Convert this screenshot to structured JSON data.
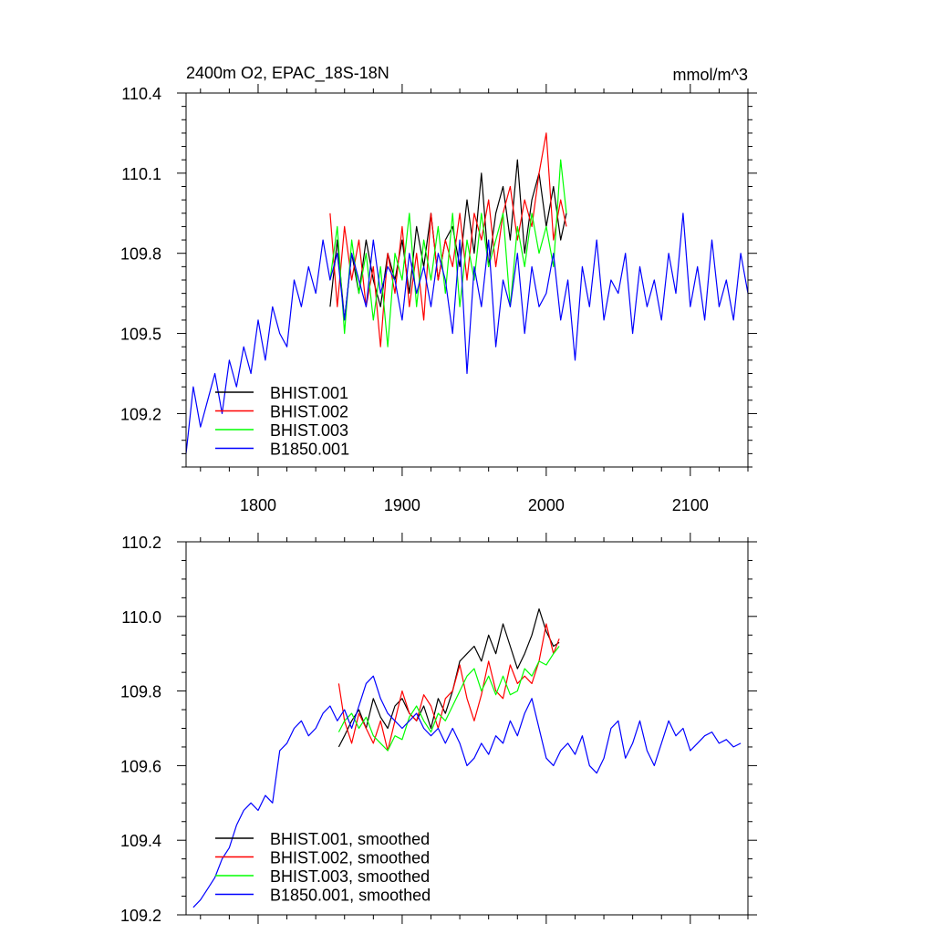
{
  "chart_data": [
    {
      "type": "line",
      "panel": "top",
      "title_left": "2400m O2, EPAC_18S-18N",
      "title_right": "mmol/m^3",
      "xlabel": "",
      "ylabel": "",
      "xlim": [
        1750,
        2140
      ],
      "ylim": [
        109.0,
        110.4
      ],
      "x_ticks": [
        1800,
        1900,
        2000,
        2100
      ],
      "x_tick_labels": [
        "1800",
        "1900",
        "2000",
        "2100"
      ],
      "y_ticks": [
        109.2,
        109.5,
        109.8,
        110.1,
        110.4
      ],
      "y_tick_labels": [
        "109.2",
        "109.5",
        "109.8",
        "110.1",
        "110.4"
      ],
      "legend_position": "bottom-left",
      "series": [
        {
          "name": "BHIST.001",
          "color": "#000000",
          "x": [
            1850,
            1855,
            1860,
            1865,
            1870,
            1875,
            1880,
            1885,
            1890,
            1895,
            1900,
            1905,
            1910,
            1915,
            1920,
            1925,
            1930,
            1935,
            1940,
            1945,
            1950,
            1955,
            1960,
            1965,
            1970,
            1975,
            1980,
            1985,
            1990,
            1995,
            2000,
            2005,
            2010,
            2014
          ],
          "values": [
            109.6,
            109.85,
            109.55,
            109.8,
            109.65,
            109.85,
            109.7,
            109.6,
            109.8,
            109.7,
            109.85,
            109.65,
            109.9,
            109.75,
            109.95,
            109.7,
            109.85,
            109.9,
            109.75,
            110.0,
            109.8,
            110.1,
            109.75,
            109.95,
            110.05,
            109.85,
            110.15,
            109.8,
            110.0,
            110.1,
            109.9,
            110.05,
            109.85,
            109.95
          ]
        },
        {
          "name": "BHIST.002",
          "color": "#ff0000",
          "x": [
            1850,
            1855,
            1860,
            1865,
            1870,
            1875,
            1880,
            1885,
            1890,
            1895,
            1900,
            1905,
            1910,
            1915,
            1920,
            1925,
            1930,
            1935,
            1940,
            1945,
            1950,
            1955,
            1960,
            1965,
            1970,
            1975,
            1980,
            1985,
            1990,
            1995,
            2000,
            2005,
            2010,
            2014
          ],
          "values": [
            109.95,
            109.6,
            109.9,
            109.7,
            109.85,
            109.6,
            109.75,
            109.45,
            109.8,
            109.65,
            109.9,
            109.6,
            109.8,
            109.55,
            109.95,
            109.7,
            109.85,
            109.75,
            109.95,
            109.7,
            109.95,
            109.85,
            110.0,
            109.75,
            109.95,
            110.05,
            109.85,
            110.0,
            109.9,
            110.1,
            110.25,
            109.85,
            110.0,
            109.9
          ]
        },
        {
          "name": "BHIST.003",
          "color": "#00ff00",
          "x": [
            1850,
            1855,
            1860,
            1865,
            1870,
            1875,
            1880,
            1885,
            1890,
            1895,
            1900,
            1905,
            1910,
            1915,
            1920,
            1925,
            1930,
            1935,
            1940,
            1945,
            1950,
            1955,
            1960,
            1965,
            1970,
            1975,
            1980,
            1985,
            1990,
            1995,
            2000,
            2005,
            2010,
            2014
          ],
          "values": [
            109.7,
            109.9,
            109.5,
            109.85,
            109.65,
            109.8,
            109.55,
            109.75,
            109.45,
            109.8,
            109.7,
            109.95,
            109.6,
            109.85,
            109.7,
            109.9,
            109.65,
            109.95,
            109.6,
            109.85,
            109.7,
            109.95,
            109.75,
            109.85,
            109.95,
            109.6,
            109.9,
            109.75,
            109.95,
            109.8,
            109.9,
            109.75,
            110.15,
            109.95
          ]
        },
        {
          "name": "B1850.001",
          "color": "#0000ff",
          "x": [
            1750,
            1755,
            1760,
            1765,
            1770,
            1775,
            1780,
            1785,
            1790,
            1795,
            1800,
            1805,
            1810,
            1815,
            1820,
            1825,
            1830,
            1835,
            1840,
            1845,
            1850,
            1855,
            1860,
            1865,
            1870,
            1875,
            1880,
            1885,
            1890,
            1895,
            1900,
            1905,
            1910,
            1915,
            1920,
            1925,
            1930,
            1935,
            1940,
            1945,
            1950,
            1955,
            1960,
            1965,
            1970,
            1975,
            1980,
            1985,
            1990,
            1995,
            2000,
            2005,
            2010,
            2015,
            2020,
            2025,
            2030,
            2035,
            2040,
            2045,
            2050,
            2055,
            2060,
            2065,
            2070,
            2075,
            2080,
            2085,
            2090,
            2095,
            2100,
            2105,
            2110,
            2115,
            2120,
            2125,
            2130,
            2135,
            2140
          ],
          "values": [
            109.05,
            109.3,
            109.15,
            109.25,
            109.35,
            109.2,
            109.4,
            109.3,
            109.45,
            109.35,
            109.55,
            109.4,
            109.6,
            109.5,
            109.45,
            109.7,
            109.6,
            109.75,
            109.65,
            109.85,
            109.7,
            109.8,
            109.55,
            109.8,
            109.7,
            109.6,
            109.85,
            109.65,
            109.75,
            109.7,
            109.55,
            109.8,
            109.65,
            109.75,
            109.6,
            109.8,
            109.7,
            109.5,
            109.85,
            109.35,
            109.75,
            109.6,
            109.85,
            109.45,
            109.7,
            109.6,
            109.8,
            109.5,
            109.75,
            109.6,
            109.65,
            109.8,
            109.55,
            109.7,
            109.4,
            109.75,
            109.6,
            109.85,
            109.55,
            109.7,
            109.65,
            109.8,
            109.5,
            109.75,
            109.6,
            109.7,
            109.55,
            109.8,
            109.65,
            109.95,
            109.6,
            109.75,
            109.55,
            109.85,
            109.6,
            109.7,
            109.55,
            109.8,
            109.65
          ]
        }
      ]
    },
    {
      "type": "line",
      "panel": "bottom",
      "xlabel": "",
      "ylabel": "",
      "xlim": [
        1750,
        2140
      ],
      "ylim": [
        109.2,
        110.2
      ],
      "x_ticks": [
        1800,
        1900,
        2000,
        2100
      ],
      "y_ticks": [
        109.2,
        109.4,
        109.6,
        109.8,
        110.0,
        110.2
      ],
      "y_tick_labels": [
        "109.2",
        "109.4",
        "109.6",
        "109.8",
        "110.0",
        "110.2"
      ],
      "legend_position": "bottom-left",
      "series": [
        {
          "name": "BHIST.001, smoothed",
          "color": "#000000",
          "x": [
            1856,
            1860,
            1865,
            1870,
            1875,
            1880,
            1885,
            1890,
            1895,
            1900,
            1905,
            1910,
            1915,
            1920,
            1925,
            1930,
            1935,
            1940,
            1945,
            1950,
            1955,
            1960,
            1965,
            1970,
            1975,
            1980,
            1985,
            1990,
            1995,
            2000,
            2005,
            2009
          ],
          "values": [
            109.65,
            109.68,
            109.72,
            109.75,
            109.7,
            109.78,
            109.73,
            109.7,
            109.76,
            109.78,
            109.74,
            109.72,
            109.76,
            109.7,
            109.78,
            109.74,
            109.8,
            109.88,
            109.9,
            109.92,
            109.88,
            109.95,
            109.9,
            109.98,
            109.92,
            109.86,
            109.9,
            109.95,
            110.02,
            109.96,
            109.92,
            109.93
          ]
        },
        {
          "name": "BHIST.002, smoothed",
          "color": "#ff0000",
          "x": [
            1856,
            1860,
            1865,
            1870,
            1875,
            1880,
            1885,
            1890,
            1895,
            1900,
            1905,
            1910,
            1915,
            1920,
            1925,
            1930,
            1935,
            1940,
            1945,
            1950,
            1955,
            1960,
            1965,
            1970,
            1975,
            1980,
            1985,
            1990,
            1995,
            2000,
            2005,
            2009
          ],
          "values": [
            109.82,
            109.72,
            109.66,
            109.74,
            109.7,
            109.66,
            109.72,
            109.64,
            109.72,
            109.8,
            109.74,
            109.72,
            109.79,
            109.76,
            109.7,
            109.78,
            109.8,
            109.87,
            109.78,
            109.72,
            109.79,
            109.88,
            109.8,
            109.78,
            109.87,
            109.82,
            109.84,
            109.82,
            109.88,
            109.98,
            109.9,
            109.94
          ]
        },
        {
          "name": "BHIST.003, smoothed",
          "color": "#00ff00",
          "x": [
            1856,
            1860,
            1865,
            1870,
            1875,
            1880,
            1885,
            1890,
            1895,
            1900,
            1905,
            1910,
            1915,
            1920,
            1925,
            1930,
            1935,
            1940,
            1945,
            1950,
            1955,
            1960,
            1965,
            1970,
            1975,
            1980,
            1985,
            1990,
            1995,
            2000,
            2005,
            2009
          ],
          "values": [
            109.69,
            109.72,
            109.74,
            109.7,
            109.73,
            109.68,
            109.66,
            109.64,
            109.68,
            109.67,
            109.73,
            109.76,
            109.72,
            109.69,
            109.74,
            109.72,
            109.76,
            109.8,
            109.84,
            109.86,
            109.8,
            109.84,
            109.79,
            109.84,
            109.79,
            109.8,
            109.86,
            109.84,
            109.88,
            109.87,
            109.9,
            109.92
          ]
        },
        {
          "name": "B1850.001, smoothed",
          "color": "#0000ff",
          "x": [
            1755,
            1760,
            1765,
            1770,
            1775,
            1780,
            1785,
            1790,
            1795,
            1800,
            1805,
            1810,
            1815,
            1820,
            1825,
            1830,
            1835,
            1840,
            1845,
            1850,
            1855,
            1860,
            1865,
            1870,
            1875,
            1880,
            1885,
            1890,
            1895,
            1900,
            1905,
            1910,
            1915,
            1920,
            1925,
            1930,
            1935,
            1940,
            1945,
            1950,
            1955,
            1960,
            1965,
            1970,
            1975,
            1980,
            1985,
            1990,
            1995,
            2000,
            2005,
            2010,
            2015,
            2020,
            2025,
            2030,
            2035,
            2040,
            2045,
            2050,
            2055,
            2060,
            2065,
            2070,
            2075,
            2080,
            2085,
            2090,
            2095,
            2100,
            2105,
            2110,
            2115,
            2120,
            2125,
            2130,
            2135
          ],
          "values": [
            109.22,
            109.24,
            109.27,
            109.3,
            109.35,
            109.38,
            109.44,
            109.48,
            109.5,
            109.48,
            109.52,
            109.5,
            109.64,
            109.66,
            109.7,
            109.72,
            109.68,
            109.7,
            109.74,
            109.76,
            109.72,
            109.75,
            109.7,
            109.76,
            109.82,
            109.84,
            109.78,
            109.74,
            109.72,
            109.7,
            109.72,
            109.74,
            109.7,
            109.68,
            109.7,
            109.66,
            109.7,
            109.66,
            109.6,
            109.62,
            109.66,
            109.63,
            109.68,
            109.66,
            109.72,
            109.68,
            109.74,
            109.78,
            109.7,
            109.62,
            109.6,
            109.64,
            109.66,
            109.63,
            109.68,
            109.6,
            109.58,
            109.62,
            109.7,
            109.72,
            109.62,
            109.66,
            109.72,
            109.64,
            109.6,
            109.66,
            109.72,
            109.68,
            109.7,
            109.64,
            109.66,
            109.68,
            109.69,
            109.66,
            109.67,
            109.65,
            109.66
          ]
        }
      ]
    }
  ]
}
